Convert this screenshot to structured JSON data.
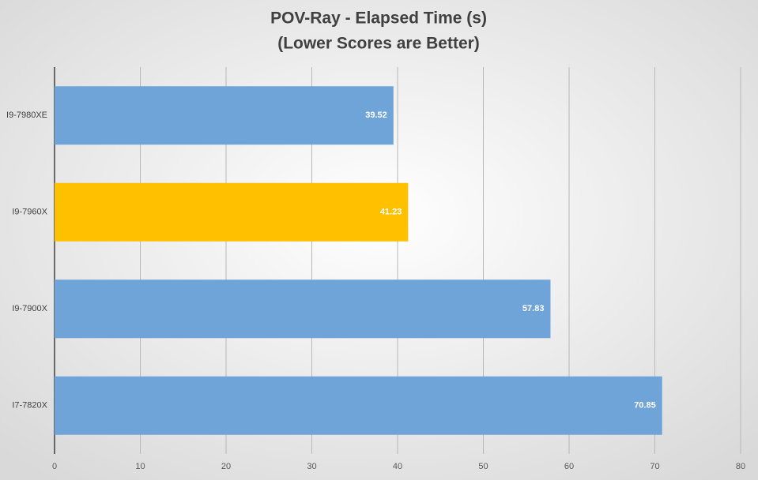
{
  "chart_data": {
    "type": "hbar",
    "title": "POV-Ray - Elapsed Time (s)",
    "subtitle": "(Lower Scores are Better)",
    "categories": [
      "I9-7980XE",
      "I9-7960X",
      "I9-7900X",
      "I7-7820X"
    ],
    "values": [
      39.52,
      41.23,
      57.83,
      70.85
    ],
    "colors": [
      "#6fa4d9",
      "#ffc000",
      "#6fa4d9",
      "#6fa4d9"
    ],
    "xlim": [
      0,
      80
    ],
    "xticks": [
      0,
      10,
      20,
      30,
      40,
      50,
      60,
      70,
      80
    ],
    "grid": true
  }
}
